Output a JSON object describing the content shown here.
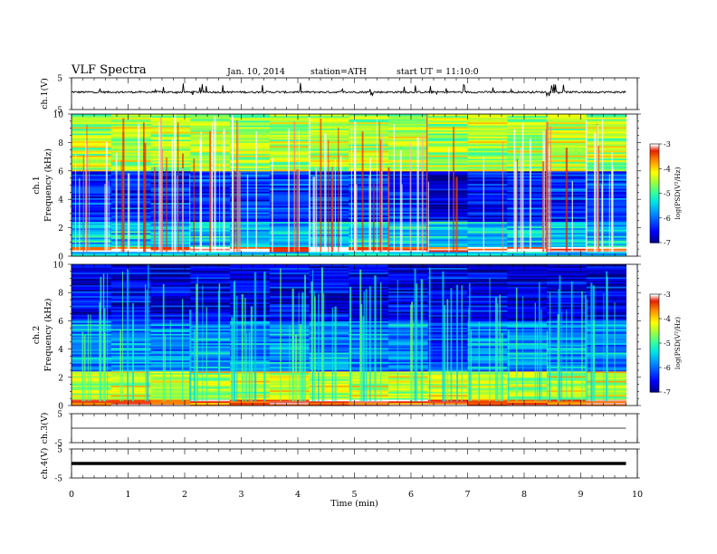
{
  "header": {
    "title": "VLF  Spectra",
    "date": "Jan. 10, 2014",
    "station": "station=ATH",
    "start": "start  UT  =   11:10:0"
  },
  "chart_data": [
    {
      "type": "line",
      "name": "ch1-waveform",
      "ylabel": "ch.1(V)",
      "ylim": [
        -5,
        5
      ],
      "yticks": [
        -5,
        5
      ],
      "description_values": {
        "baseline": 0.5,
        "noise_amplitude": 0.3,
        "spike_max": 2
      }
    },
    {
      "type": "heatmap",
      "name": "ch1-spectrogram",
      "ylabel": [
        "ch.1",
        "Frequency  (kHz)"
      ],
      "ylim": [
        0,
        10
      ],
      "yticks": [
        0,
        2,
        4,
        6,
        8,
        10
      ],
      "colorbar": {
        "label": "log(PSD(V²/Hz)",
        "range": [
          -7,
          -3
        ],
        "ticks": [
          -3,
          -4,
          -5,
          -6,
          -7
        ]
      },
      "bands": [
        {
          "range_khz": [
            0,
            0.3
          ],
          "level": -5.5
        },
        {
          "range_khz": [
            0.3,
            0.7
          ],
          "level": -3.2
        },
        {
          "range_khz": [
            0.7,
            2.5
          ],
          "level": -5.6
        },
        {
          "range_khz": [
            2.5,
            6
          ],
          "level": -6.4
        },
        {
          "range_khz": [
            6,
            10
          ],
          "level": -4.6
        }
      ],
      "quiet_period_min": [
        5.7,
        7.0
      ]
    },
    {
      "type": "heatmap",
      "name": "ch2-spectrogram",
      "ylabel": [
        "ch.2",
        "Frequency  (kHz)"
      ],
      "ylim": [
        0,
        10
      ],
      "yticks": [
        0,
        2,
        4,
        6,
        8,
        10
      ],
      "colorbar": {
        "label": "log(PSD(V²/Hz)",
        "range": [
          -7,
          -3
        ],
        "ticks": [
          -3,
          -4,
          -5,
          -6,
          -7
        ]
      },
      "bands": [
        {
          "range_khz": [
            0,
            0.5
          ],
          "level": -3.5
        },
        {
          "range_khz": [
            0.5,
            2.5
          ],
          "level": -4.5
        },
        {
          "range_khz": [
            2.5,
            6
          ],
          "level": -5.9
        },
        {
          "range_khz": [
            6,
            10
          ],
          "level": -6.7
        }
      ],
      "quiet_period_min": [
        5.7,
        7.0
      ]
    },
    {
      "type": "line",
      "name": "ch3-waveform",
      "ylabel": "ch.3(V)",
      "ylim": [
        -5,
        5
      ],
      "yticks": [
        -5,
        5
      ],
      "description_values": {
        "baseline": 0
      }
    },
    {
      "type": "line",
      "name": "ch4-waveform",
      "ylabel": "ch.4(V)",
      "ylim": [
        -5,
        5
      ],
      "yticks": [
        -5,
        5
      ],
      "description_values": {
        "baseline": 0
      }
    }
  ],
  "x_axis": {
    "label": "Time  (min)",
    "range": [
      0,
      10
    ],
    "ticks": [
      0,
      1,
      2,
      3,
      4,
      5,
      6,
      7,
      8,
      9,
      10
    ],
    "data_end_min": 9.8
  }
}
